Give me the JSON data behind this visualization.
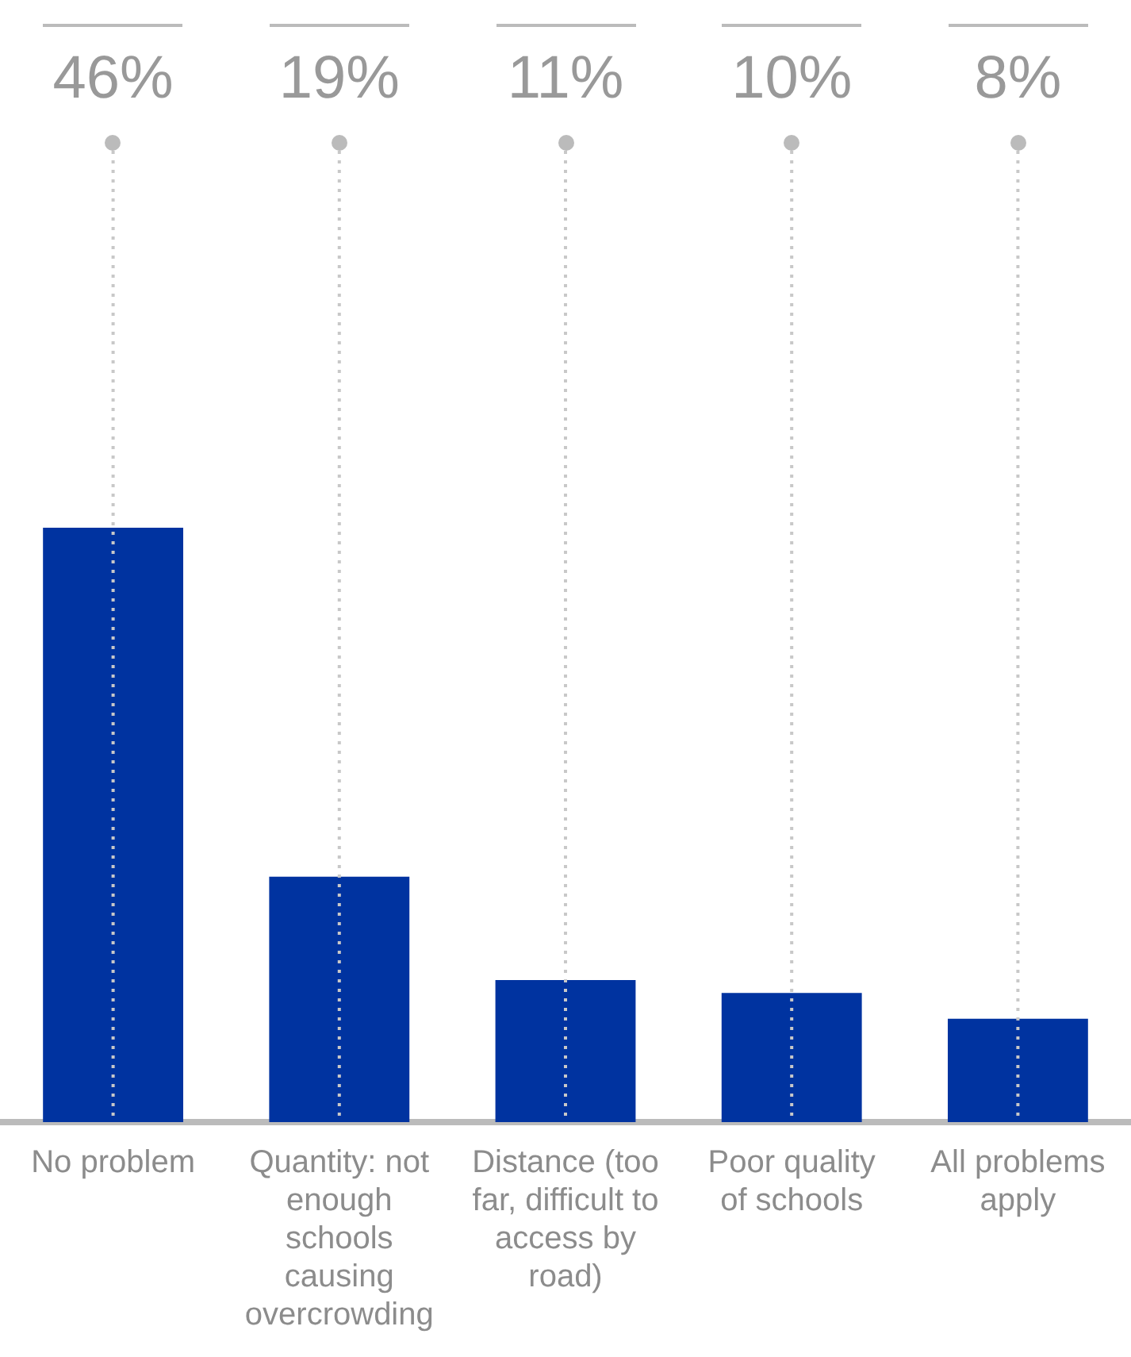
{
  "chart_data": {
    "type": "bar",
    "categories": [
      "No problem",
      "Quantity: not enough schools causing overcrowding",
      "Distance (too far, difficult to access by road)",
      "Poor quality of schools",
      "All problems apply"
    ],
    "values": [
      46,
      19,
      11,
      10,
      8
    ],
    "value_labels": [
      "46%",
      "19%",
      "11%",
      "10%",
      "8%"
    ],
    "color": "#0033a0",
    "grid": "x",
    "legend": false,
    "tick_labels": "x"
  }
}
